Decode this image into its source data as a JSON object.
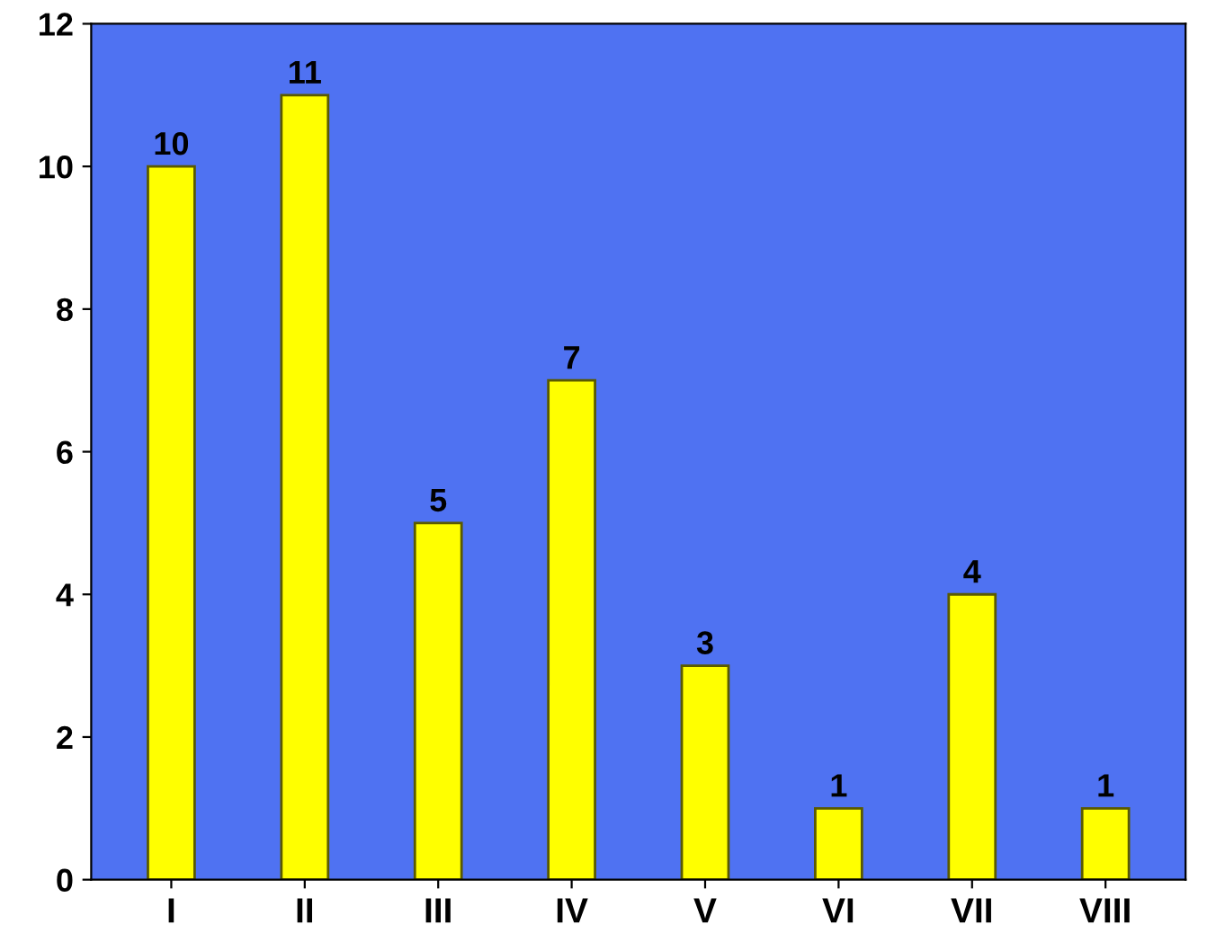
{
  "chart_data": {
    "type": "bar",
    "categories": [
      "I",
      "II",
      "III",
      "IV",
      "V",
      "VI",
      "VII",
      "VIII"
    ],
    "values": [
      10,
      11,
      5,
      7,
      3,
      1,
      4,
      1
    ],
    "color": "#ffff00",
    "ylim": [
      0,
      12
    ],
    "yticks": [
      0,
      2,
      4,
      6,
      8,
      10,
      12
    ],
    "grid": false,
    "data_labels": true,
    "legend": false
  }
}
